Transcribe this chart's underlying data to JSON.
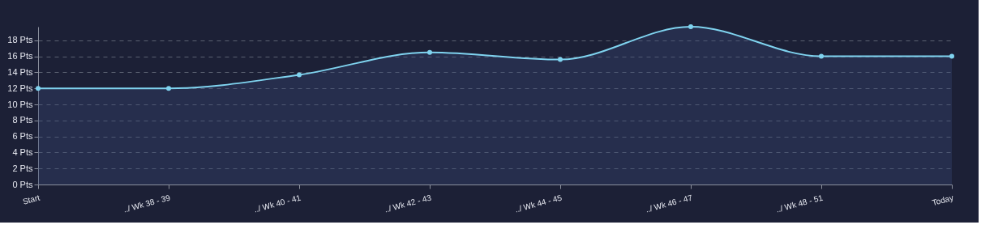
{
  "chart_data": {
    "type": "area",
    "categories": [
      "Start",
      "../ Wk 38 - 39",
      "../ Wk 40 - 41",
      "../ Wk 42 - 43",
      "../ Wk 44 - 45",
      "../ Wk 46 - 47",
      "../ Wk 48 - 51",
      "Today"
    ],
    "series": [
      {
        "color": "#7fd3ef",
        "values": [
          12,
          12,
          13.7,
          16.5,
          15.6,
          19.7,
          16,
          16
        ]
      }
    ],
    "ylim": [
      0,
      19.7
    ],
    "yticks": [
      {
        "value": 0,
        "label": "0 Pts"
      },
      {
        "value": 2,
        "label": "2 Pts"
      },
      {
        "value": 4,
        "label": "4 Pts"
      },
      {
        "value": 6,
        "label": "6 Pts"
      },
      {
        "value": 8,
        "label": "8 Pts"
      },
      {
        "value": 10,
        "label": "10 Pts"
      },
      {
        "value": 12,
        "label": "12 Pts"
      },
      {
        "value": 14,
        "label": "14 Pts"
      },
      {
        "value": 16,
        "label": "16 Pts"
      },
      {
        "value": 18,
        "label": "18 Pts"
      }
    ],
    "grid": "y",
    "marker": "circle",
    "line_style": "solid"
  }
}
